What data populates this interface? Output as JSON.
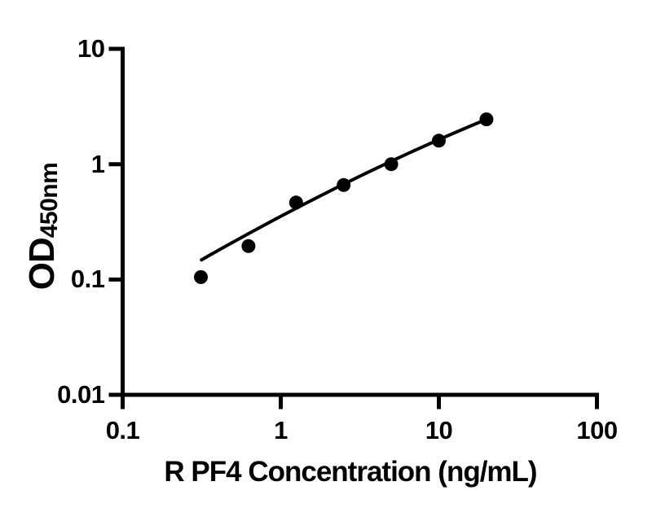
{
  "figure": {
    "background_color": "#ffffff",
    "ink_color": "#000000"
  },
  "chart_data": {
    "type": "scatter",
    "title": "",
    "xlabel": "R PF4 Concentration (ng/mL)",
    "ylabel_main": "OD",
    "ylabel_subscript": "450nm",
    "x_scale": "log10",
    "y_scale": "log10",
    "xlim": [
      0.1,
      100
    ],
    "ylim": [
      0.01,
      10
    ],
    "x_ticks": [
      0.1,
      1,
      10,
      100
    ],
    "x_tick_labels": [
      "0.1",
      "1",
      "10",
      "100"
    ],
    "y_ticks": [
      10,
      1,
      0.1,
      0.01
    ],
    "y_tick_labels": [
      "10",
      "1",
      "0.1",
      "0.01"
    ],
    "grid": false,
    "legend": null,
    "marker": {
      "shape": "circle",
      "color": "#000000",
      "radius_px": 8.5
    },
    "points": [
      {
        "x": 0.3125,
        "y": 0.105
      },
      {
        "x": 0.625,
        "y": 0.195
      },
      {
        "x": 1.25,
        "y": 0.465
      },
      {
        "x": 2.5,
        "y": 0.66
      },
      {
        "x": 5,
        "y": 1.0
      },
      {
        "x": 10,
        "y": 1.6
      },
      {
        "x": 20,
        "y": 2.45
      }
    ],
    "fit_line": {
      "start": {
        "x": 0.315,
        "y": 0.148
      },
      "mid": {
        "x": 2.6,
        "y": 0.69
      },
      "end": {
        "x": 20,
        "y": 2.45
      }
    }
  }
}
